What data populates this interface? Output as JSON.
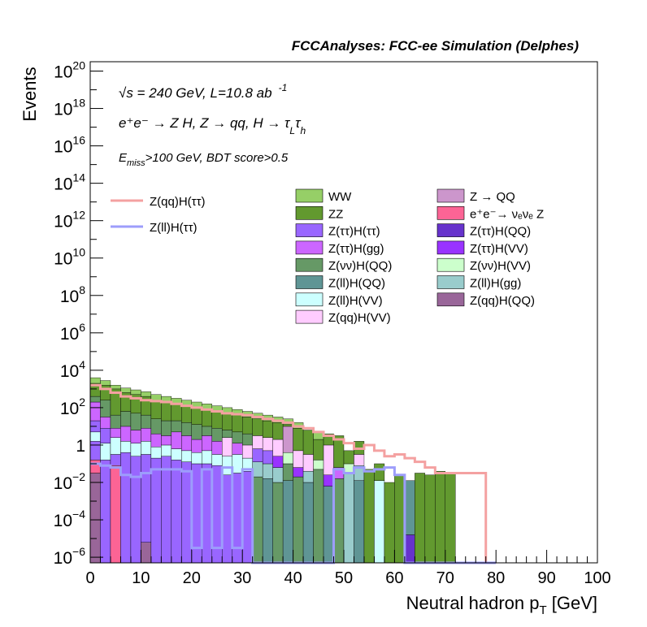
{
  "chart_data": {
    "type": "bar",
    "title": "FCCAnalyses: FCC-ee Simulation (Delphes)",
    "xlabel": "Neutral hadron p_T [GeV]",
    "ylabel": "Events",
    "xlim": [
      0,
      100
    ],
    "ylim_log10": [
      -6.3,
      20.5
    ],
    "y_scale": "log",
    "bin_width": 2,
    "x_ticks": [
      0,
      10,
      20,
      30,
      40,
      50,
      60,
      70,
      80,
      90,
      100
    ],
    "x_tick_labels": [
      "0",
      "10",
      "20",
      "30",
      "40",
      "50",
      "60",
      "70",
      "80",
      "90",
      "100"
    ],
    "y_ticks_log10": [
      -6,
      -4,
      -2,
      0,
      2,
      4,
      6,
      8,
      10,
      12,
      14,
      16,
      18,
      20
    ],
    "y_tick_labels": [
      {
        "base": "10",
        "exp": "−6"
      },
      {
        "base": "10",
        "exp": "−4"
      },
      {
        "base": "10",
        "exp": "−2"
      },
      {
        "base": "1",
        "exp": ""
      },
      {
        "base": "10",
        "exp": "2"
      },
      {
        "base": "10",
        "exp": "4"
      },
      {
        "base": "10",
        "exp": "6"
      },
      {
        "base": "10",
        "exp": "8"
      },
      {
        "base": "10",
        "exp": "10"
      },
      {
        "base": "10",
        "exp": "12"
      },
      {
        "base": "10",
        "exp": "14"
      },
      {
        "base": "10",
        "exp": "16"
      },
      {
        "base": "10",
        "exp": "18"
      },
      {
        "base": "10",
        "exp": "20"
      }
    ],
    "annotations": {
      "sqrt_s": "√s = 240 GeV, L=10.8 ab",
      "sqrt_s_exp": "-1",
      "process": "e⁺e⁻ → Z H, Z → qq, H → τ",
      "process_sub1": "L",
      "process_tau": "τ",
      "process_sub2": "h",
      "selection_pre": "E",
      "selection_sub": "miss",
      "selection_post": ">100 GeV, BDT score>0.5"
    },
    "legend_lines": [
      {
        "name": "Z(qq)H(ττ)",
        "color": "#f4a1a1"
      },
      {
        "name": "Z(ll)H(ττ)",
        "color": "#9d9dfb"
      }
    ],
    "legend_fills": [
      {
        "name": "WW",
        "color": "#96cf67"
      },
      {
        "name": "Z → QQ",
        "color": "#cc96cc"
      },
      {
        "name": "ZZ",
        "color": "#62992f"
      },
      {
        "name": "e⁺e⁻→ νₑνₑ Z",
        "color": "#fc6495"
      },
      {
        "name": "Z(ττ)H(ττ)",
        "color": "#9966ff"
      },
      {
        "name": "Z(ττ)H(QQ)",
        "color": "#6633cc"
      },
      {
        "name": "Z(ττ)H(gg)",
        "color": "#cc66ff"
      },
      {
        "name": "Z(ττ)H(VV)",
        "color": "#9933ff"
      },
      {
        "name": "Z(νν)H(QQ)",
        "color": "#669966"
      },
      {
        "name": "Z(νν)H(VV)",
        "color": "#ccffcc"
      },
      {
        "name": "Z(ll)H(QQ)",
        "color": "#5f9595"
      },
      {
        "name": "Z(ll)H(gg)",
        "color": "#99cccc"
      },
      {
        "name": "Z(ll)H(VV)",
        "color": "#ccffff"
      },
      {
        "name": "Z(qq)H(QQ)",
        "color": "#996699"
      },
      {
        "name": "Z(qq)H(VV)",
        "color": "#ffccff"
      }
    ],
    "stack_bins": [
      [
        [
          -6.3,
          -1.5,
          "#996699"
        ],
        [
          -1.5,
          -0.8,
          "#fc6495"
        ],
        [
          -0.8,
          0.2,
          "#9966ff"
        ],
        [
          0.2,
          0.7,
          "#ccffff"
        ],
        [
          0.7,
          1.3,
          "#9966ff"
        ],
        [
          1.3,
          2.3,
          "#cc66ff"
        ],
        [
          2.3,
          2.6,
          "#669966"
        ],
        [
          2.6,
          3.3,
          "#62992f"
        ],
        [
          3.3,
          3.6,
          "#96cf67"
        ]
      ],
      [
        [
          -6.3,
          -0.8,
          "#9966ff"
        ],
        [
          -0.8,
          0.1,
          "#ccffff"
        ],
        [
          0.1,
          0.9,
          "#9966ff"
        ],
        [
          0.9,
          1.5,
          "#cc66ff"
        ],
        [
          1.5,
          2.4,
          "#669966"
        ],
        [
          2.4,
          3.2,
          "#62992f"
        ],
        [
          3.2,
          3.45,
          "#96cf67"
        ]
      ],
      [
        [
          -6.3,
          -1.1,
          "#fc6495"
        ],
        [
          -1.1,
          -0.5,
          "#9966ff"
        ],
        [
          -0.5,
          0.4,
          "#ccffff"
        ],
        [
          0.4,
          0.9,
          "#cc66ff"
        ],
        [
          0.9,
          1.6,
          "#669966"
        ],
        [
          1.6,
          3.0,
          "#62992f"
        ],
        [
          3.0,
          3.2,
          "#96cf67"
        ]
      ],
      [
        [
          -6.3,
          -0.4,
          "#9966ff"
        ],
        [
          -0.4,
          0.2,
          "#ccffff"
        ],
        [
          0.2,
          1.0,
          "#cc66ff"
        ],
        [
          1.0,
          1.8,
          "#669966"
        ],
        [
          1.8,
          2.8,
          "#62992f"
        ],
        [
          2.8,
          3.05,
          "#96cf67"
        ]
      ],
      [
        [
          -6.3,
          -0.6,
          "#9966ff"
        ],
        [
          -0.6,
          0.1,
          "#ccffff"
        ],
        [
          0.1,
          0.8,
          "#cc66ff"
        ],
        [
          0.8,
          1.7,
          "#669966"
        ],
        [
          1.7,
          2.7,
          "#62992f"
        ],
        [
          2.7,
          2.95,
          "#96cf67"
        ]
      ],
      [
        [
          -6.3,
          -5.2,
          "#996699"
        ],
        [
          -5.2,
          -0.5,
          "#9966ff"
        ],
        [
          -0.5,
          0.2,
          "#ccffff"
        ],
        [
          0.2,
          0.9,
          "#cc66ff"
        ],
        [
          0.9,
          1.6,
          "#669966"
        ],
        [
          1.6,
          2.6,
          "#62992f"
        ],
        [
          2.6,
          2.85,
          "#96cf67"
        ]
      ],
      [
        [
          -6.3,
          -0.7,
          "#9966ff"
        ],
        [
          -0.7,
          -0.1,
          "#ccffff"
        ],
        [
          -0.1,
          0.6,
          "#cc66ff"
        ],
        [
          0.6,
          1.4,
          "#669966"
        ],
        [
          1.4,
          2.4,
          "#62992f"
        ],
        [
          2.4,
          2.7,
          "#96cf67"
        ]
      ],
      [
        [
          -6.3,
          -0.6,
          "#9966ff"
        ],
        [
          -0.6,
          0.0,
          "#ccffff"
        ],
        [
          0.0,
          0.5,
          "#cc66ff"
        ],
        [
          0.5,
          1.3,
          "#669966"
        ],
        [
          1.3,
          2.3,
          "#62992f"
        ],
        [
          2.3,
          2.6,
          "#96cf67"
        ]
      ],
      [
        [
          -6.3,
          -0.8,
          "#9966ff"
        ],
        [
          -0.8,
          -0.2,
          "#ccffff"
        ],
        [
          -0.2,
          0.7,
          "#cc66ff"
        ],
        [
          0.7,
          1.3,
          "#669966"
        ],
        [
          1.3,
          2.2,
          "#62992f"
        ],
        [
          2.2,
          2.5,
          "#96cf67"
        ]
      ],
      [
        [
          -6.3,
          -0.9,
          "#9966ff"
        ],
        [
          -0.9,
          -0.3,
          "#ccffff"
        ],
        [
          -0.3,
          0.5,
          "#cc66ff"
        ],
        [
          0.5,
          1.2,
          "#669966"
        ],
        [
          1.2,
          2.1,
          "#62992f"
        ],
        [
          2.1,
          2.4,
          "#96cf67"
        ]
      ],
      [
        [
          -6.3,
          -1.0,
          "#9966ff"
        ],
        [
          -1.0,
          -0.4,
          "#ccffff"
        ],
        [
          -0.4,
          0.3,
          "#cc66ff"
        ],
        [
          0.3,
          1.1,
          "#669966"
        ],
        [
          1.1,
          2.0,
          "#62992f"
        ],
        [
          2.0,
          2.3,
          "#96cf67"
        ]
      ],
      [
        [
          -6.3,
          -1.0,
          "#9966ff"
        ],
        [
          -1.0,
          -0.3,
          "#ccffff"
        ],
        [
          -0.3,
          0.5,
          "#cc66ff"
        ],
        [
          0.5,
          1.0,
          "#669966"
        ],
        [
          1.0,
          1.9,
          "#62992f"
        ],
        [
          1.9,
          2.2,
          "#96cf67"
        ]
      ],
      [
        [
          -6.3,
          -1.1,
          "#9966ff"
        ],
        [
          -1.1,
          -0.5,
          "#ccffff"
        ],
        [
          -0.5,
          0.2,
          "#cc66ff"
        ],
        [
          0.2,
          0.9,
          "#669966"
        ],
        [
          0.9,
          1.8,
          "#62992f"
        ],
        [
          1.8,
          2.1,
          "#96cf67"
        ]
      ],
      [
        [
          -6.3,
          -1.6,
          "#9966ff"
        ],
        [
          -1.6,
          -0.6,
          "#ccffff"
        ],
        [
          -0.6,
          0.4,
          "#ffccff"
        ],
        [
          0.4,
          0.8,
          "#669966"
        ],
        [
          0.8,
          1.7,
          "#62992f"
        ],
        [
          1.7,
          2.0,
          "#96cf67"
        ]
      ],
      [
        [
          -6.3,
          -1.5,
          "#9966ff"
        ],
        [
          -1.5,
          -0.5,
          "#ccffff"
        ],
        [
          -0.5,
          0.1,
          "#cc66ff"
        ],
        [
          0.1,
          0.7,
          "#669966"
        ],
        [
          0.7,
          1.6,
          "#62992f"
        ],
        [
          1.6,
          1.9,
          "#96cf67"
        ]
      ],
      [
        [
          -6.3,
          -1.4,
          "#9966ff"
        ],
        [
          -1.4,
          -0.7,
          "#ccffff"
        ],
        [
          -0.7,
          0.0,
          "#ffccff"
        ],
        [
          0.0,
          0.6,
          "#669966"
        ],
        [
          0.6,
          1.5,
          "#62992f"
        ],
        [
          1.5,
          1.8,
          "#96cf67"
        ]
      ],
      [
        [
          -6.3,
          -1.7,
          "#669966"
        ],
        [
          -1.7,
          -0.9,
          "#99cccc"
        ],
        [
          -0.9,
          -0.2,
          "#9966ff"
        ],
        [
          -0.2,
          0.5,
          "#ffccff"
        ],
        [
          0.5,
          1.4,
          "#62992f"
        ],
        [
          1.4,
          1.7,
          "#96cf67"
        ]
      ],
      [
        [
          -6.3,
          -1.8,
          "#5f9595"
        ],
        [
          -1.8,
          -1.0,
          "#99cccc"
        ],
        [
          -1.0,
          -0.3,
          "#9966ff"
        ],
        [
          -0.3,
          0.4,
          "#ffccff"
        ],
        [
          0.4,
          1.3,
          "#62992f"
        ],
        [
          1.3,
          1.6,
          "#96cf67"
        ]
      ],
      [
        [
          -6.3,
          -2.0,
          "#669966"
        ],
        [
          -2.0,
          -1.2,
          "#99cccc"
        ],
        [
          -1.2,
          -0.6,
          "#9933ff"
        ],
        [
          -0.6,
          0.3,
          "#ffccff"
        ],
        [
          0.3,
          1.2,
          "#62992f"
        ],
        [
          1.2,
          1.5,
          "#96cf67"
        ]
      ],
      [
        [
          -6.3,
          -1.9,
          "#5f9595"
        ],
        [
          -1.9,
          -1.0,
          "#669966"
        ],
        [
          -1.0,
          -0.4,
          "#ccffcc"
        ],
        [
          -0.4,
          1.0,
          "#cc96cc"
        ],
        [
          1.0,
          1.1,
          "#62992f"
        ],
        [
          1.1,
          1.4,
          "#96cf67"
        ]
      ],
      [
        [
          -6.3,
          -1.7,
          "#669966"
        ],
        [
          -1.7,
          -1.2,
          "#9933ff"
        ],
        [
          -1.2,
          -0.3,
          "#ffccff"
        ],
        [
          -0.3,
          0.9,
          "#62992f"
        ],
        [
          0.9,
          1.2,
          "#96cf67"
        ]
      ],
      [
        [
          -6.3,
          -2.0,
          "#5f9595"
        ],
        [
          -2.0,
          -1.4,
          "#99cccc"
        ],
        [
          -1.4,
          -0.5,
          "#ffccff"
        ],
        [
          -0.5,
          0.8,
          "#62992f"
        ]
      ],
      [
        [
          -6.3,
          -1.3,
          "#669966"
        ],
        [
          -1.3,
          -0.8,
          "#ccffcc"
        ],
        [
          -0.8,
          0.3,
          "#62992f"
        ],
        [
          0.3,
          0.7,
          "#96cf67"
        ]
      ],
      [
        [
          -6.3,
          -2.2,
          "#5f9595"
        ],
        [
          -2.2,
          -1.6,
          "#9933ff"
        ],
        [
          -1.6,
          0.0,
          "#ffccff"
        ],
        [
          0.0,
          0.6,
          "#62992f"
        ]
      ],
      [
        [
          -6.3,
          -1.8,
          "#669966"
        ],
        [
          -1.8,
          -1.2,
          "#cc66ff"
        ],
        [
          -1.2,
          0.5,
          "#62992f"
        ]
      ],
      [
        [
          -6.3,
          -1.5,
          "#99cccc"
        ],
        [
          -1.5,
          -1.0,
          "#ccffcc"
        ],
        [
          -1.0,
          -0.3,
          "#62992f"
        ]
      ],
      [
        [
          -6.3,
          -1.9,
          "#5f9595"
        ],
        [
          -1.9,
          -1.1,
          "#99cccc"
        ],
        [
          -1.1,
          -0.5,
          "#ffccff"
        ],
        [
          -0.5,
          0.2,
          "#62992f"
        ]
      ],
      [
        [
          -6.3,
          -1.3,
          "#62992f"
        ]
      ],
      [
        [
          -6.3,
          -1.9,
          "#ccffff"
        ],
        [
          -1.9,
          -1.0,
          "#62992f"
        ]
      ],
      [
        [
          -6.3,
          -2.0,
          "#62992f"
        ]
      ],
      [
        [
          -6.3,
          -1.6,
          "#62992f"
        ]
      ],
      [
        [
          -6.3,
          -4.8,
          "#6633cc"
        ],
        [
          -4.8,
          -1.9,
          "#5f9595"
        ]
      ],
      [
        [
          -6.3,
          -1.5,
          "#62992f"
        ]
      ],
      [
        [
          -6.3,
          -1.6,
          "#62992f"
        ]
      ],
      [
        [
          -6.3,
          -1.4,
          "#62992f"
        ]
      ],
      [
        [
          -6.3,
          -1.5,
          "#62992f"
        ]
      ]
    ],
    "series": [
      {
        "name": "Z(qq)H(ττ)",
        "color": "#f4a1a1",
        "bins_log10": [
          3.2,
          3.0,
          2.8,
          2.6,
          2.5,
          2.4,
          2.35,
          2.3,
          2.2,
          2.1,
          2.0,
          1.9,
          1.8,
          1.7,
          1.65,
          1.6,
          1.5,
          1.4,
          1.3,
          1.2,
          1.0,
          0.9,
          0.7,
          0.5,
          0.3,
          0.1,
          -0.2,
          0.0,
          -0.3,
          -0.6,
          -0.5,
          -0.7,
          -0.9,
          -1.2,
          -1.5,
          -1.5,
          -1.5,
          -1.5,
          -1.5,
          -6.3
        ]
      },
      {
        "name": "Z(ll)H(ττ)",
        "color": "#9d9dfb",
        "bins_log10": [
          -1.0,
          -1.1,
          -1.2,
          -1.6,
          -1.7,
          -1.5,
          -1.3,
          -1.3,
          -1.3,
          -1.4,
          -5.5,
          -1.3,
          -5.5,
          -1.2,
          -5.5,
          -1.3,
          -6.3,
          -6.3,
          -6.3,
          -6.3,
          -6.3,
          -6.3,
          -6.3,
          -6.3,
          -1.3,
          -1.5,
          -1.2,
          -1.4,
          -1.3,
          -1.2,
          -1.6,
          -6.3,
          -6.3,
          -6.3,
          -6.3,
          -6.3,
          -6.3,
          -6.3,
          -6.3,
          -6.3
        ]
      }
    ]
  }
}
